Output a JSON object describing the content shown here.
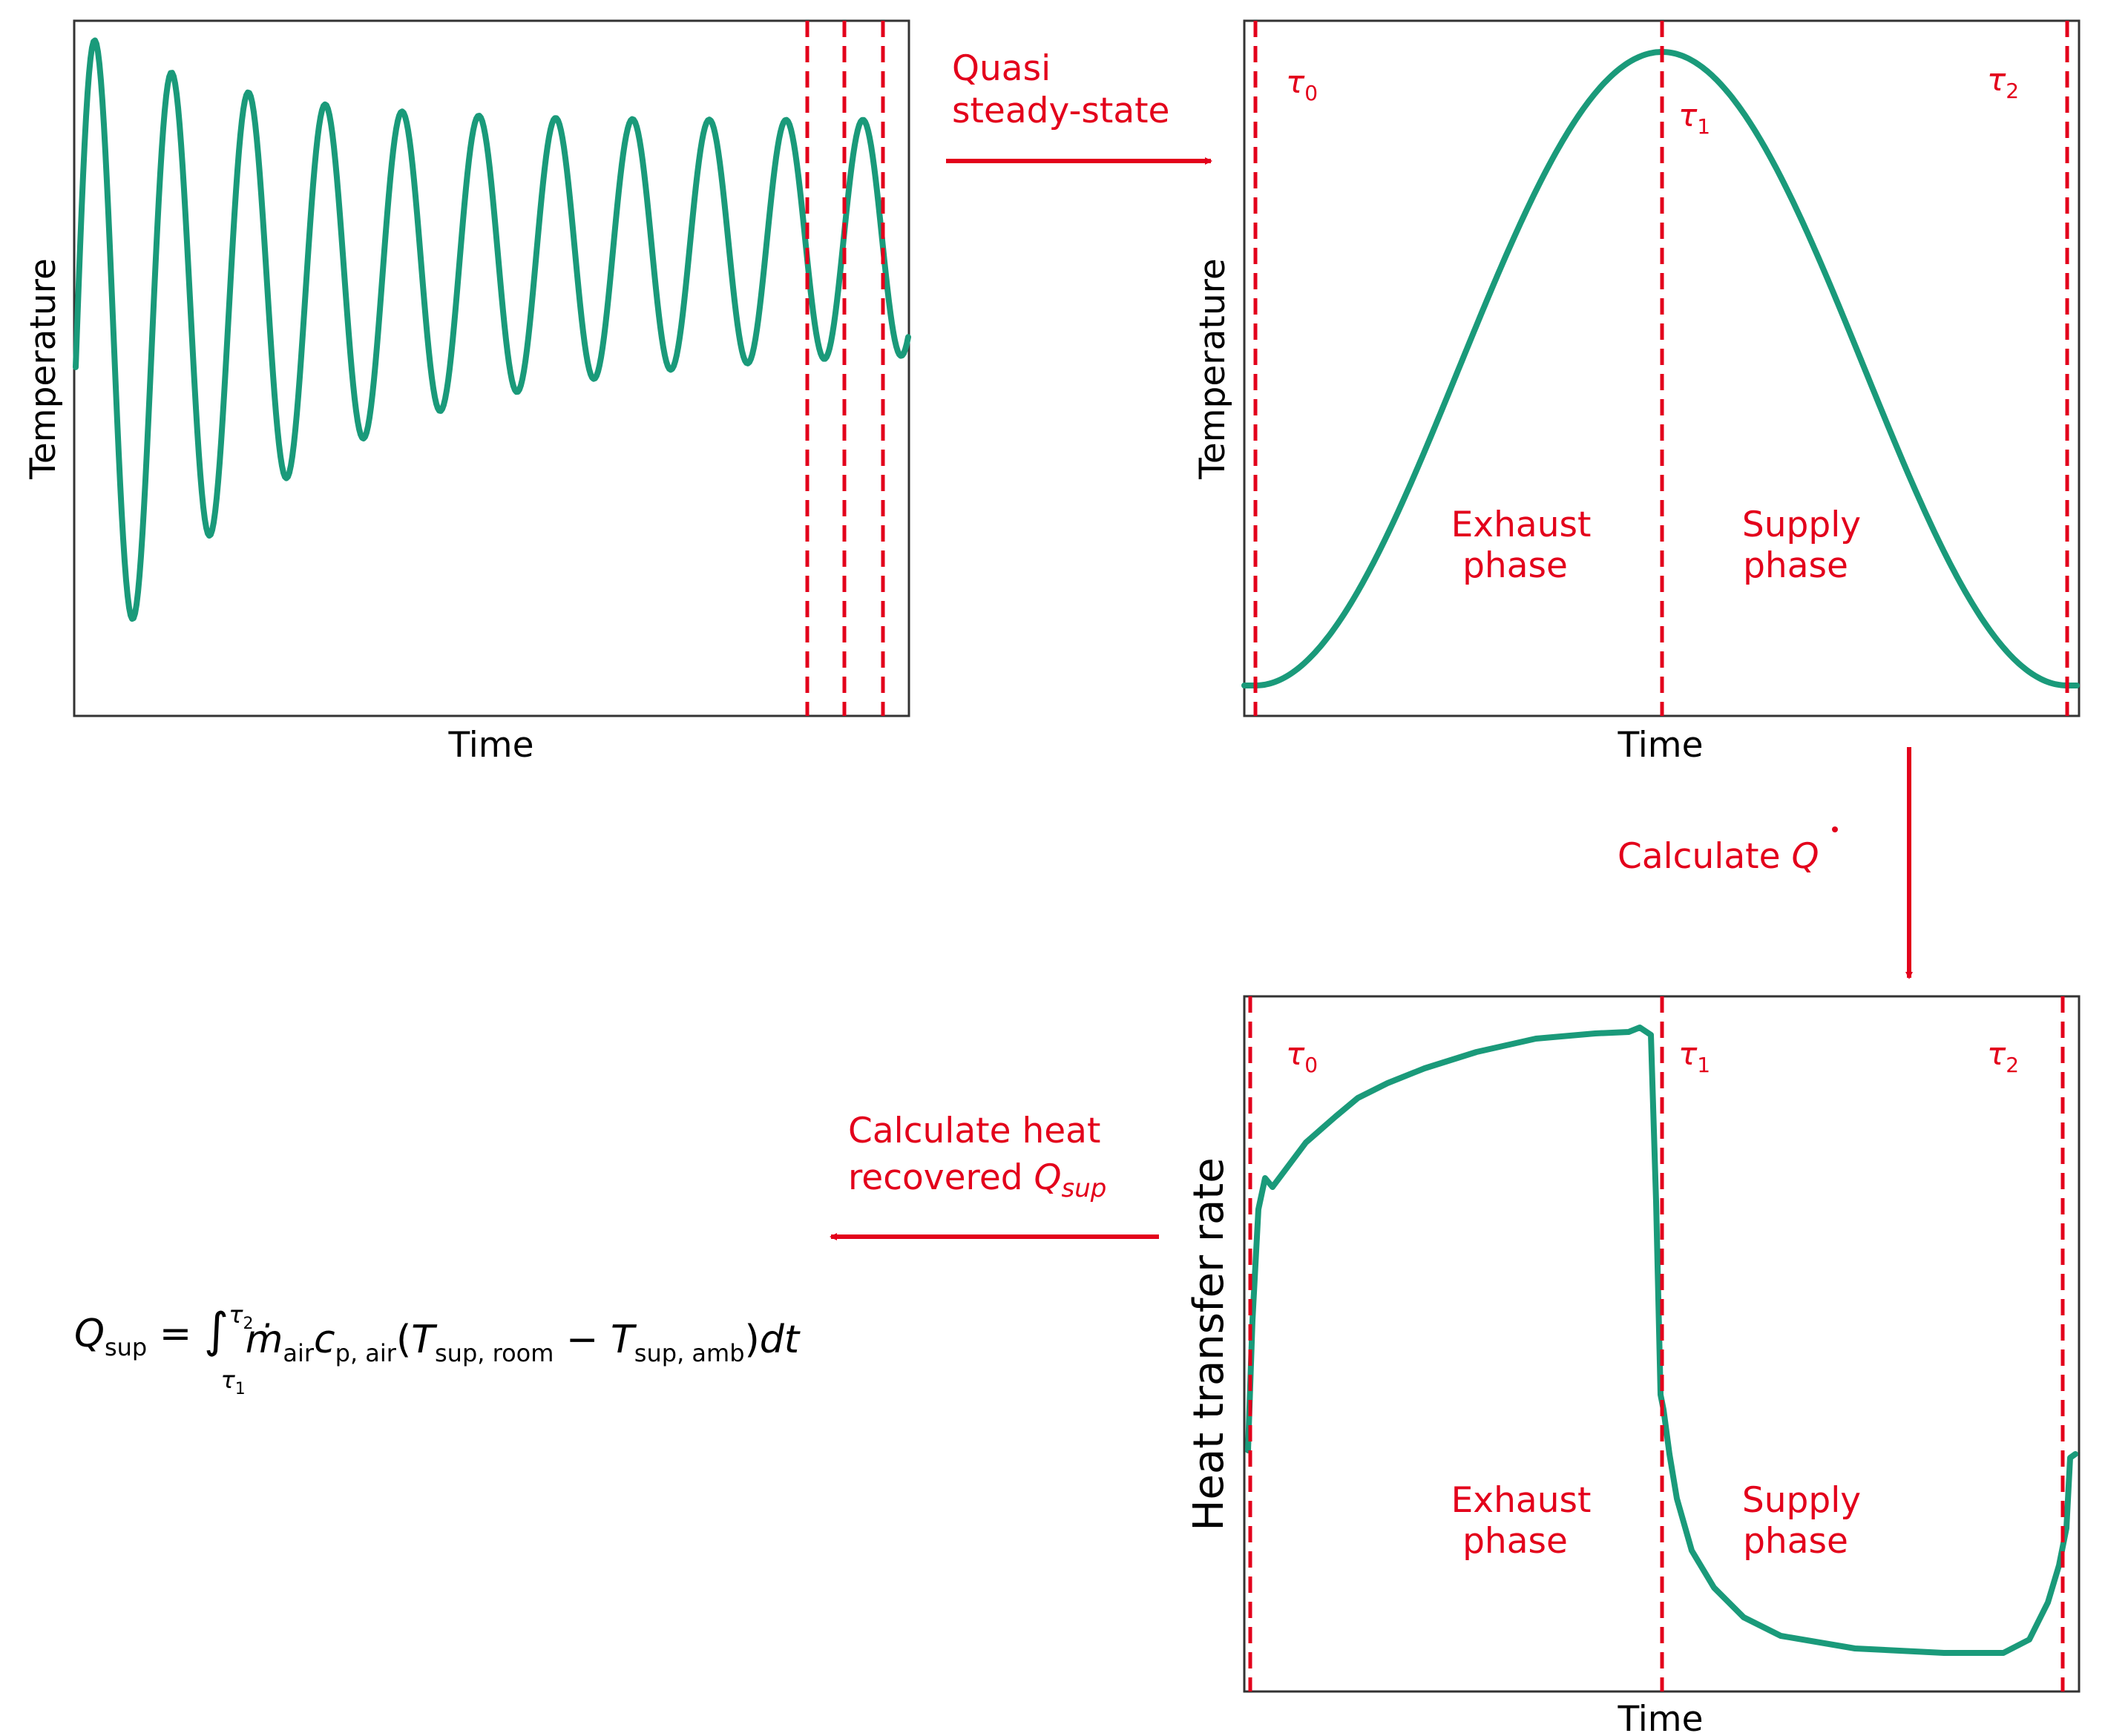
{
  "colors": {
    "curve": "#1a9a7a",
    "marker": "#e3001b",
    "frame": "#333333",
    "text": "#000000"
  },
  "panels": {
    "top_left": {
      "ylabel": "Temperature",
      "xlabel": "Time"
    },
    "top_right": {
      "ylabel": "Temperature",
      "xlabel": "Time",
      "tau0": "τ",
      "tau0_sub": "0",
      "tau1": "τ",
      "tau1_sub": "1",
      "tau2": "τ",
      "tau2_sub": "2",
      "phase_left_1": "Exhaust",
      "phase_left_2": "phase",
      "phase_right_1": "Supply",
      "phase_right_2": "phase"
    },
    "bottom_right": {
      "ylabel": "Heat transfer rate",
      "xlabel": "Time",
      "tau0": "τ",
      "tau0_sub": "0",
      "tau1": "τ",
      "tau1_sub": "1",
      "tau2": "τ",
      "tau2_sub": "2",
      "phase_left_1": "Exhaust",
      "phase_left_2": "phase",
      "phase_right_1": "Supply",
      "phase_right_2": "phase"
    }
  },
  "steps": {
    "step1_line1": "Quasi",
    "step1_line2": "steady-state",
    "step2_prefix": "Calculate ",
    "step2_symbol": "Q",
    "step3_line1": "Calculate heat",
    "step3_line2_prefix": "recovered ",
    "step3_symbol": "Q",
    "step3_symbol_sub": "sup"
  },
  "formula": {
    "lhs": "Q",
    "lhs_sub": "sup",
    "equals": " = ",
    "integral": "∫",
    "upper": "τ",
    "upper_sub": "2",
    "lower": "τ",
    "lower_sub": "1",
    "mdot": "ṁ",
    "mdot_sub": "air",
    "cp": "c",
    "cp_sub": "p, air",
    "paren_open": "(",
    "t1": "T",
    "t1_sub": "sup, room",
    "minus": " − ",
    "t2": "T",
    "t2_sub": "sup, amb",
    "paren_close": ")",
    "dt": "dt"
  }
}
